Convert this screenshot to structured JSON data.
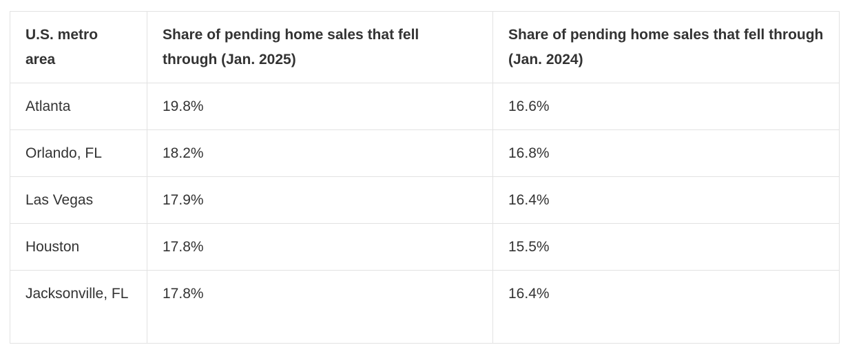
{
  "table": {
    "headers": [
      "U.S. metro area",
      "Share of pending home sales that fell through (Jan. 2025)",
      "Share of pending home sales that fell through (Jan. 2024)"
    ],
    "rows": [
      [
        "Atlanta",
        "19.8%",
        "16.6%"
      ],
      [
        "Orlando, FL",
        "18.2%",
        "16.8%"
      ],
      [
        "Las Vegas",
        "17.9%",
        "16.4%"
      ],
      [
        "Houston",
        "17.8%",
        "15.5%"
      ],
      [
        "Jacksonville, FL",
        "17.8%",
        "16.4%"
      ]
    ]
  }
}
